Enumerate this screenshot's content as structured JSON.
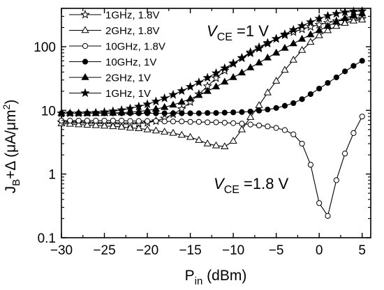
{
  "chart_data": {
    "type": "line",
    "xlabel": "P",
    "xlabel_sub": "in",
    "xlabel_unit": " (dBm)",
    "ylabel": "J",
    "ylabel_sub": "B",
    "ylabel_rest": "+Δ (μA/μm",
    "ylabel_sup": "2",
    "ylabel_end": ")",
    "xlim": [
      -30,
      6
    ],
    "ylim": [
      0.1,
      400
    ],
    "yscale": "log",
    "xticks": [
      -30,
      -25,
      -20,
      -15,
      -10,
      -5,
      0,
      5
    ],
    "xtick_labels": [
      "−30",
      "−25",
      "−20",
      "−15",
      "−10",
      "−5",
      "0",
      "5"
    ],
    "yticks": [
      0.1,
      1,
      10,
      100
    ],
    "ytick_labels": [
      "0.1",
      "1",
      "10",
      "100"
    ],
    "grid": false,
    "legend_position": "top-left",
    "annotations": [
      {
        "id": "vce-1",
        "prefix": "V",
        "sub": "CE",
        "text": " =1 V"
      },
      {
        "id": "vce-18",
        "prefix": "V",
        "sub": "CE",
        "text": " =1.8 V"
      }
    ],
    "series": [
      {
        "name": "1GHz, 1.8V",
        "marker": "star-open",
        "x": [
          -30,
          -29,
          -28,
          -27,
          -26,
          -25,
          -24,
          -23,
          -22,
          -21,
          -20,
          -19,
          -18,
          -17,
          -16,
          -15,
          -14,
          -13,
          -12,
          -11,
          -10,
          -9,
          -8,
          -7,
          -6,
          -5,
          -4,
          -3,
          -2,
          -1,
          0,
          1,
          2,
          3,
          4,
          5
        ],
        "y": [
          6.5,
          6.4,
          6.4,
          6.3,
          6.2,
          6.2,
          6.2,
          6.1,
          6.1,
          6.2,
          6.4,
          6.8,
          7.5,
          8.7,
          10.5,
          13.5,
          18,
          24,
          32,
          42,
          54,
          67,
          82,
          98,
          115,
          133,
          152,
          170,
          188,
          205,
          222,
          238,
          252,
          262,
          270,
          275
        ]
      },
      {
        "name": "2GHz, 1.8V",
        "marker": "triangle-open",
        "x": [
          -30,
          -29,
          -28,
          -27,
          -26,
          -25,
          -24,
          -23,
          -22,
          -21,
          -20,
          -19,
          -18,
          -17,
          -16,
          -15,
          -14,
          -13,
          -12,
          -11,
          -10,
          -9,
          -8,
          -7,
          -6,
          -5,
          -4,
          -3,
          -2,
          -1,
          0,
          1,
          2,
          3,
          4,
          5
        ],
        "y": [
          6.2,
          6.1,
          6.0,
          5.9,
          5.8,
          5.7,
          5.6,
          5.5,
          5.3,
          5.2,
          5.0,
          4.8,
          4.6,
          4.4,
          4.1,
          3.8,
          3.4,
          3.0,
          2.8,
          2.7,
          3.3,
          5,
          7.8,
          12,
          19,
          29,
          43,
          62,
          88,
          118,
          150,
          180,
          210,
          235,
          255,
          265
        ]
      },
      {
        "name": "10GHz, 1.8V",
        "marker": "circle-open",
        "x": [
          -30,
          -29,
          -28,
          -27,
          -26,
          -25,
          -24,
          -23,
          -22,
          -21,
          -20,
          -19,
          -18,
          -17,
          -16,
          -15,
          -14,
          -13,
          -12,
          -11,
          -10,
          -9,
          -8,
          -7,
          -6,
          -5,
          -4,
          -3,
          -2,
          -1,
          0,
          1,
          2,
          3,
          4,
          5
        ],
        "y": [
          6.9,
          6.9,
          6.9,
          6.9,
          6.9,
          6.9,
          6.9,
          6.9,
          6.8,
          6.8,
          6.8,
          6.8,
          6.7,
          6.7,
          6.7,
          6.6,
          6.6,
          6.5,
          6.5,
          6.4,
          6.3,
          6.2,
          6.0,
          5.8,
          5.6,
          5.3,
          4.9,
          4.2,
          3.0,
          1.4,
          0.35,
          0.22,
          0.8,
          2.1,
          4.4,
          8.0
        ]
      },
      {
        "name": "10GHz, 1V",
        "marker": "circle-filled",
        "x": [
          -30,
          -29,
          -28,
          -27,
          -26,
          -25,
          -24,
          -23,
          -22,
          -21,
          -20,
          -19,
          -18,
          -17,
          -16,
          -15,
          -14,
          -13,
          -12,
          -11,
          -10,
          -9,
          -8,
          -7,
          -6,
          -5,
          -4,
          -3,
          -2,
          -1,
          0,
          1,
          2,
          3,
          4,
          5
        ],
        "y": [
          9.0,
          9.0,
          9.0,
          9.0,
          9.0,
          9.0,
          9.0,
          9.0,
          9.0,
          9.0,
          9.0,
          9.0,
          9.0,
          9.0,
          9.0,
          9.0,
          9.0,
          9.1,
          9.1,
          9.2,
          9.3,
          9.4,
          9.6,
          9.9,
          10.3,
          10.9,
          11.8,
          13,
          15,
          18,
          22,
          27,
          33,
          41,
          50,
          60
        ]
      },
      {
        "name": "2GHz, 1V",
        "marker": "triangle-filled",
        "x": [
          -30,
          -29,
          -28,
          -27,
          -26,
          -25,
          -24,
          -23,
          -22,
          -21,
          -20,
          -19,
          -18,
          -17,
          -16,
          -15,
          -14,
          -13,
          -12,
          -11,
          -10,
          -9,
          -8,
          -7,
          -6,
          -5,
          -4,
          -3,
          -2,
          -1,
          0,
          1,
          2,
          3,
          4,
          5
        ],
        "y": [
          9.0,
          9.0,
          9.0,
          9.0,
          9.0,
          9.0,
          9.1,
          9.2,
          9.4,
          9.6,
          10,
          10.5,
          11.2,
          12.2,
          13.5,
          15.2,
          17.3,
          20,
          23.5,
          28,
          33,
          39,
          47,
          56,
          67,
          80,
          95,
          112,
          132,
          155,
          180,
          210,
          245,
          280,
          310,
          330
        ]
      },
      {
        "name": "1GHz, 1V",
        "marker": "star-filled",
        "x": [
          -30,
          -29,
          -28,
          -27,
          -26,
          -25,
          -24,
          -23,
          -22,
          -21,
          -20,
          -19,
          -18,
          -17,
          -16,
          -15,
          -14,
          -13,
          -12,
          -11,
          -10,
          -9,
          -8,
          -7,
          -6,
          -5,
          -4,
          -3,
          -2,
          -1,
          0,
          1,
          2,
          3,
          4,
          5
        ],
        "y": [
          9.0,
          9.0,
          9.0,
          9.1,
          9.2,
          9.4,
          9.7,
          10.1,
          10.7,
          11.5,
          12.5,
          13.8,
          15.5,
          17.6,
          20.2,
          23.5,
          27.5,
          32.5,
          38.5,
          46,
          55,
          66,
          79,
          94,
          112,
          133,
          157,
          184,
          213,
          244,
          276,
          305,
          330,
          348,
          358,
          362
        ]
      }
    ]
  }
}
